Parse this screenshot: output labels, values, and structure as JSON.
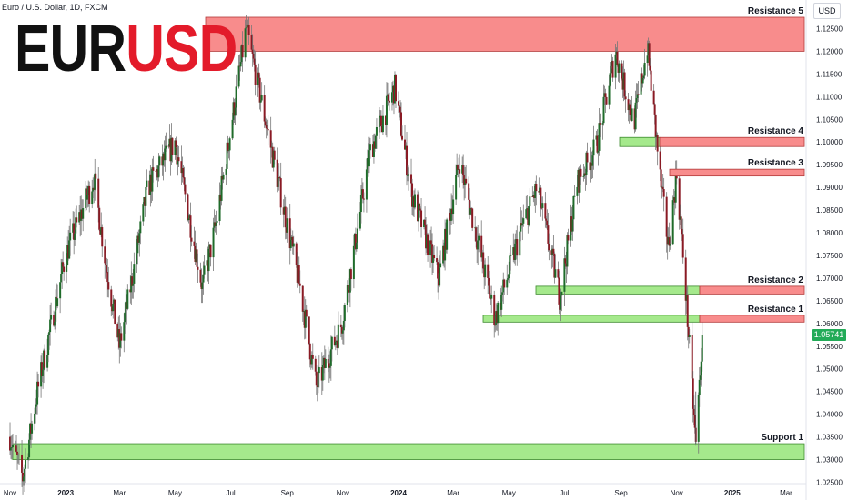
{
  "header": {
    "ticker": "Euro / U.S. Dollar, 1D, FXCM",
    "logo_left": "EUR",
    "logo_right": "USD",
    "unit": "USD",
    "last_price": "1.05741"
  },
  "chart_data": {
    "type": "candlestick",
    "title": "EURUSD",
    "ylim": [
      1.025,
      1.1275
    ],
    "y_ticks": [
      "1.12500",
      "1.12000",
      "1.11500",
      "1.11000",
      "1.10500",
      "1.10000",
      "1.09500",
      "1.09000",
      "1.08500",
      "1.08000",
      "1.07500",
      "1.07000",
      "1.06500",
      "1.06000",
      "1.05500",
      "1.05000",
      "1.04500",
      "1.04000",
      "1.03500",
      "1.03000",
      "1.02500"
    ],
    "x_ticks": [
      "Nov",
      "2023",
      "Mar",
      "May",
      "Jul",
      "Sep",
      "Nov",
      "2024",
      "Mar",
      "May",
      "Jul",
      "Sep",
      "Nov",
      "2025",
      "Mar"
    ],
    "price_path": [
      {
        "date": "2022-11",
        "price": 1.035
      },
      {
        "date": "2022-11-15",
        "price": 1.026
      },
      {
        "date": "2022-12-01",
        "price": 1.045
      },
      {
        "date": "2023-01",
        "price": 1.075
      },
      {
        "date": "2023-02-01",
        "price": 1.092
      },
      {
        "date": "2023-02-15",
        "price": 1.072
      },
      {
        "date": "2023-03-01",
        "price": 1.055
      },
      {
        "date": "2023-03-15",
        "price": 1.07
      },
      {
        "date": "2023-04-01",
        "price": 1.09
      },
      {
        "date": "2023-05-01",
        "price": 1.1
      },
      {
        "date": "2023-05-31",
        "price": 1.068
      },
      {
        "date": "2023-06-15",
        "price": 1.082
      },
      {
        "date": "2023-07-18",
        "price": 1.125
      },
      {
        "date": "2023-08-15",
        "price": 1.098
      },
      {
        "date": "2023-09-15",
        "price": 1.068
      },
      {
        "date": "2023-10-03",
        "price": 1.046
      },
      {
        "date": "2023-10-31",
        "price": 1.06
      },
      {
        "date": "2023-12-01",
        "price": 1.098
      },
      {
        "date": "2023-12-28",
        "price": 1.112
      },
      {
        "date": "2024-01-15",
        "price": 1.089
      },
      {
        "date": "2024-02-14",
        "price": 1.07
      },
      {
        "date": "2024-03-08",
        "price": 1.096
      },
      {
        "date": "2024-04-16",
        "price": 1.061
      },
      {
        "date": "2024-05-15",
        "price": 1.081
      },
      {
        "date": "2024-06-01",
        "price": 1.09
      },
      {
        "date": "2024-06-26",
        "price": 1.066
      },
      {
        "date": "2024-07-15",
        "price": 1.091
      },
      {
        "date": "2024-08-05",
        "price": 1.099
      },
      {
        "date": "2024-08-26",
        "price": 1.12
      },
      {
        "date": "2024-09-15",
        "price": 1.104
      },
      {
        "date": "2024-09-30",
        "price": 1.121
      },
      {
        "date": "2024-10-15",
        "price": 1.09
      },
      {
        "date": "2024-10-23",
        "price": 1.077
      },
      {
        "date": "2024-11-01",
        "price": 1.093
      },
      {
        "date": "2024-11-10",
        "price": 1.07
      },
      {
        "date": "2024-11-22",
        "price": 1.033
      },
      {
        "date": "2024-11-29",
        "price": 1.057
      }
    ],
    "zones": [
      {
        "label": "Resistance 5",
        "type": "resistance",
        "low": 1.12,
        "high": 1.1275,
        "start": "2023-06"
      },
      {
        "label": "Resistance 4",
        "type": "resistance",
        "low": 1.099,
        "high": 1.101,
        "start": "2024-08"
      },
      {
        "label": "Resistance 3",
        "type": "resistance",
        "low": 1.0925,
        "high": 1.094,
        "start": "2024-09"
      },
      {
        "label": "Resistance 2",
        "type": "resistance",
        "low": 1.0665,
        "high": 1.0682,
        "start": "2024-11"
      },
      {
        "label": "Resistance 1",
        "type": "resistance",
        "low": 1.0603,
        "high": 1.0618,
        "start": "2024-11"
      },
      {
        "label": "Support 1",
        "type": "support",
        "low": 1.03,
        "high": 1.0335,
        "start": "2022-11"
      }
    ],
    "green_zones": [
      {
        "low": 1.0665,
        "high": 1.0682,
        "start": "2024-05",
        "end": "2024-11"
      },
      {
        "low": 1.0603,
        "high": 1.0618,
        "start": "2024-04",
        "end": "2024-11"
      },
      {
        "low": 1.099,
        "high": 1.101,
        "start": "2024-08",
        "end": "2024-09"
      }
    ],
    "colors": {
      "up": "#1f6b2a",
      "down": "#8a1a24",
      "wick": "#777777",
      "resistance": "#f88c8c",
      "support": "#a5e98c",
      "resistance_border": "#b23a3a",
      "support_border": "#3d8a2e",
      "badge": "#22ab58"
    }
  }
}
